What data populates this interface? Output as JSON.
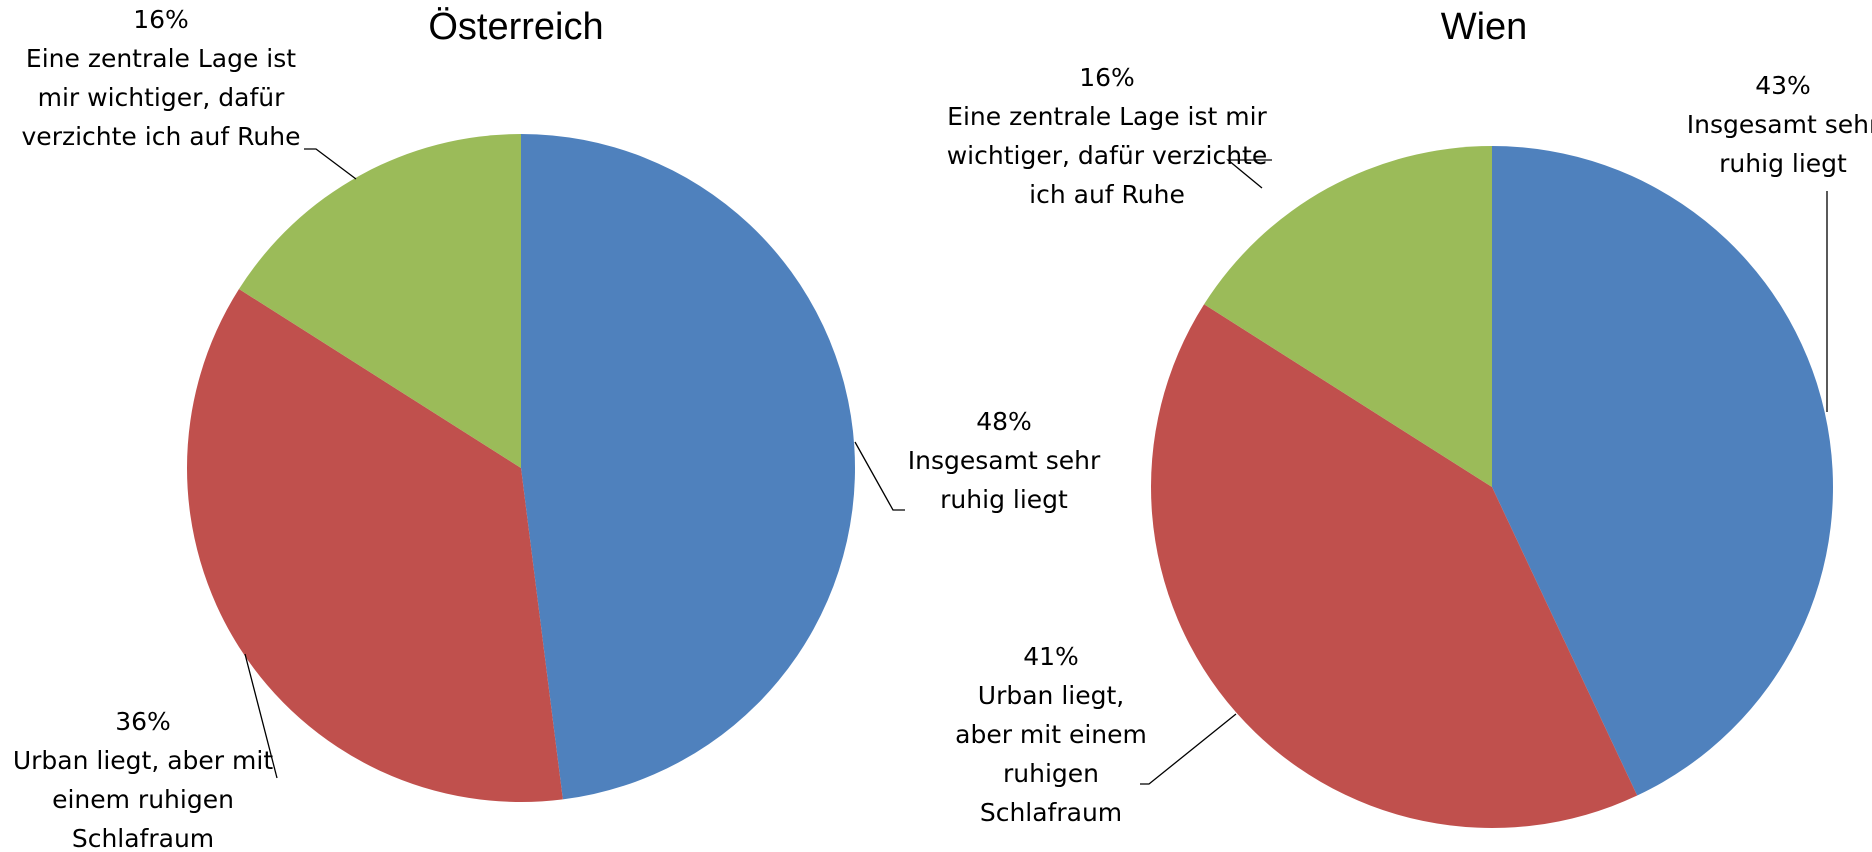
{
  "chart_data": [
    {
      "type": "pie",
      "title": "Österreich",
      "categories": [
        "Insgesamt sehr ruhig liegt",
        "Urban liegt, aber mit einem ruhigen Schlafraum",
        "Eine zentrale Lage ist mir wichtiger, dafür verzichte ich auf Ruhe"
      ],
      "values": [
        48,
        36,
        16
      ],
      "value_labels": [
        "48%",
        "36%",
        "16%"
      ],
      "colors": [
        "#4f81bd",
        "#c0504d",
        "#9bbb59"
      ]
    },
    {
      "type": "pie",
      "title": "Wien",
      "categories": [
        "Insgesamt sehr ruhig liegt",
        "Urban liegt, aber mit einem ruhigen Schlafraum",
        "Eine zentrale Lage ist mir wichtiger, dafür verzichte ich auf Ruhe"
      ],
      "values": [
        43,
        41,
        16
      ],
      "value_labels": [
        "43%",
        "41%",
        "16%"
      ],
      "colors": [
        "#4f81bd",
        "#c0504d",
        "#9bbb59"
      ]
    }
  ]
}
